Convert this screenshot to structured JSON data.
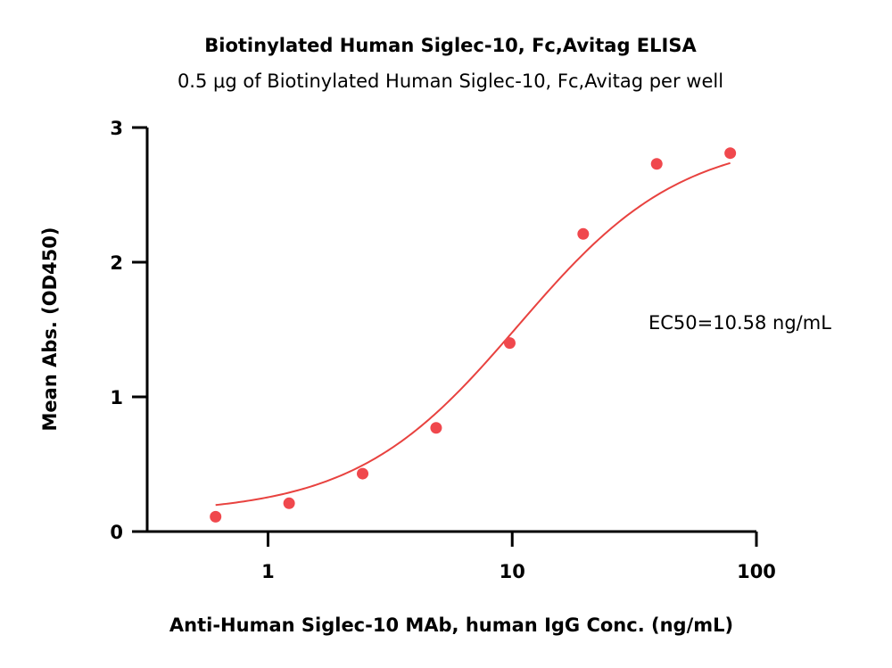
{
  "chart_data": {
    "type": "scatter",
    "title": "Biotinylated Human Siglec-10, Fc,Avitag ELISA",
    "subtitle": "0.5 μg of Biotinylated Human Siglec-10, Fc,Avitag per well",
    "xlabel": "Anti-Human Siglec-10 MAb, human IgG Conc. (ng/mL)",
    "ylabel": "Mean Abs. (OD450)",
    "xscale": "log",
    "xlim": [
      0.32,
      100
    ],
    "ylim": [
      0,
      3
    ],
    "xticks": [
      1,
      10,
      100
    ],
    "xtick_labels": [
      "1",
      "10",
      "100"
    ],
    "yticks": [
      0,
      1,
      2,
      3
    ],
    "ytick_labels": [
      "0",
      "1",
      "2",
      "3"
    ],
    "grid": false,
    "annotation": "EC50=10.58 ng/mL",
    "point_color": "#F0484D",
    "curve_color": "#E8423F",
    "series": [
      {
        "x": [
          0.61,
          1.22,
          2.44,
          4.88,
          9.77,
          19.53,
          39.06,
          78.13
        ],
        "y": [
          0.11,
          0.21,
          0.43,
          0.77,
          1.4,
          2.21,
          2.73,
          2.81
        ]
      }
    ],
    "fit_curve": {
      "model": "4PL",
      "bottom": 0.13,
      "top": 2.93,
      "ec50": 10.58,
      "hill": 1.3,
      "x_range": [
        0.61,
        78.13
      ]
    }
  }
}
